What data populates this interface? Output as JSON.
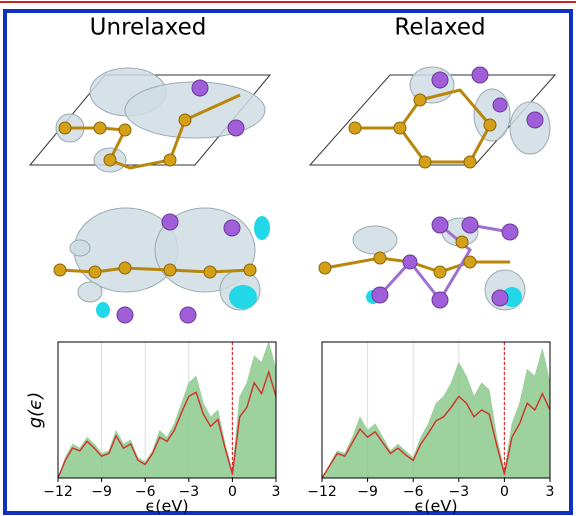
{
  "chart_data": [
    {
      "type": "area",
      "title": "Unrelaxed",
      "xlabel": "ϵ(eV)",
      "ylabel": "g(ϵ)",
      "x": [
        -12,
        -11.5,
        -11,
        -10.5,
        -10,
        -9.5,
        -9,
        -8.5,
        -8,
        -7.5,
        -7,
        -6.5,
        -6,
        -5.5,
        -5,
        -4.5,
        -4,
        -3.5,
        -3,
        -2.5,
        -2,
        -1.5,
        -1,
        -0.5,
        0,
        0.5,
        1,
        1.5,
        2,
        2.5,
        3
      ],
      "xlim": [
        -12,
        3
      ],
      "xticks": [
        {
          "value": -12,
          "label": "−12"
        },
        {
          "value": -9,
          "label": "−9"
        },
        {
          "value": -6,
          "label": "−6"
        },
        {
          "value": -3,
          "label": "−3"
        },
        0,
        3
      ],
      "ylim": [
        0,
        1
      ],
      "grid": true,
      "vline": 0,
      "vline_color": "#e03030",
      "series": [
        {
          "color": "#8cc98c",
          "fill": true,
          "values": [
            0,
            0.15,
            0.25,
            0.22,
            0.3,
            0.25,
            0.18,
            0.2,
            0.35,
            0.25,
            0.28,
            0.15,
            0.12,
            0.2,
            0.35,
            0.3,
            0.4,
            0.55,
            0.7,
            0.75,
            0.55,
            0.45,
            0.5,
            0.25,
            0.05,
            0.6,
            0.7,
            0.9,
            0.85,
            1.0,
            0.8
          ]
        },
        {
          "color": "#d0302a",
          "fill": false,
          "values": [
            0,
            0.13,
            0.22,
            0.2,
            0.27,
            0.22,
            0.16,
            0.18,
            0.31,
            0.22,
            0.25,
            0.13,
            0.1,
            0.18,
            0.3,
            0.27,
            0.35,
            0.48,
            0.6,
            0.63,
            0.47,
            0.38,
            0.43,
            0.22,
            0.03,
            0.45,
            0.52,
            0.7,
            0.62,
            0.78,
            0.6
          ]
        }
      ]
    },
    {
      "type": "area",
      "title": "Relaxed",
      "xlabel": "ϵ(eV)",
      "x": [
        -12,
        -11.5,
        -11,
        -10.5,
        -10,
        -9.5,
        -9,
        -8.5,
        -8,
        -7.5,
        -7,
        -6.5,
        -6,
        -5.5,
        -5,
        -4.5,
        -4,
        -3.5,
        -3,
        -2.5,
        -2,
        -1.5,
        -1,
        -0.5,
        0,
        0.5,
        1,
        1.5,
        2,
        2.5,
        3
      ],
      "xlim": [
        -12,
        3
      ],
      "xticks": [
        {
          "value": -12,
          "label": "−12"
        },
        {
          "value": -9,
          "label": "−9"
        },
        {
          "value": -6,
          "label": "−6"
        },
        {
          "value": -3,
          "label": "−3"
        },
        0,
        3
      ],
      "ylim": [
        0,
        1
      ],
      "grid": true,
      "vline": 0,
      "vline_color": "#e03030",
      "series": [
        {
          "color": "#8cc98c",
          "fill": true,
          "values": [
            0,
            0.1,
            0.2,
            0.18,
            0.3,
            0.45,
            0.35,
            0.4,
            0.3,
            0.2,
            0.25,
            0.2,
            0.15,
            0.3,
            0.4,
            0.55,
            0.6,
            0.7,
            0.85,
            0.75,
            0.6,
            0.7,
            0.65,
            0.3,
            0.05,
            0.4,
            0.55,
            0.8,
            0.75,
            0.95,
            0.7
          ]
        },
        {
          "color": "#d0302a",
          "fill": false,
          "values": [
            0,
            0.09,
            0.18,
            0.16,
            0.26,
            0.36,
            0.3,
            0.34,
            0.26,
            0.18,
            0.22,
            0.17,
            0.13,
            0.25,
            0.33,
            0.42,
            0.45,
            0.52,
            0.6,
            0.55,
            0.45,
            0.5,
            0.47,
            0.24,
            0.03,
            0.3,
            0.4,
            0.55,
            0.5,
            0.62,
            0.5
          ]
        }
      ]
    }
  ]
}
